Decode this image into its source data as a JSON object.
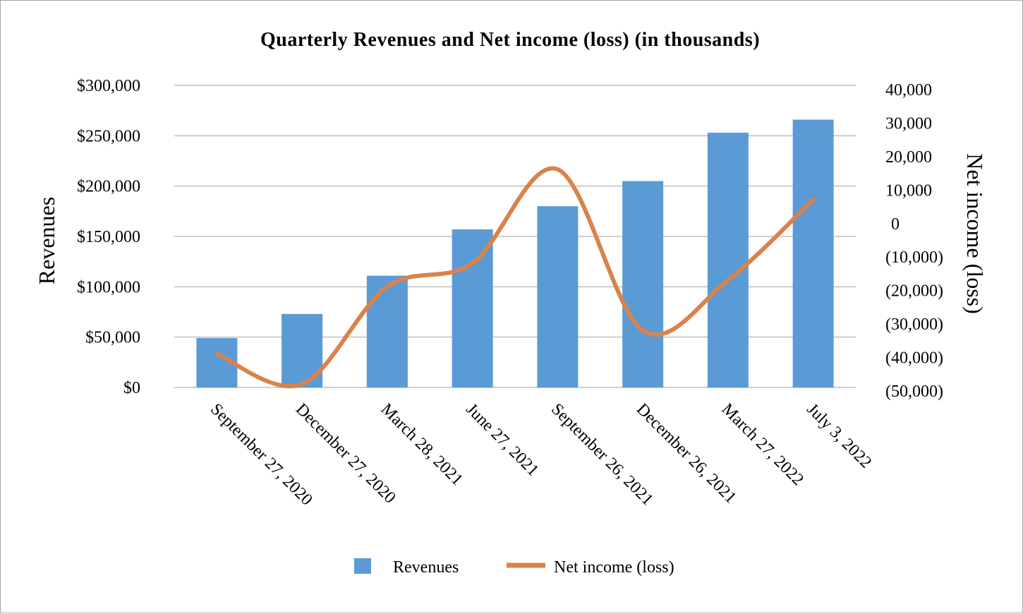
{
  "chart_data": {
    "type": "bar",
    "title": "Quarterly Revenues and Net income (loss) (in thousands)",
    "categories": [
      "September 27, 2020",
      "December 27, 2020",
      "March 28, 2021",
      "June 27, 2021",
      "September 26, 2021",
      "December 26, 2021",
      "March 27, 2022",
      "July 3, 2022"
    ],
    "series": [
      {
        "name": "Revenues",
        "type": "bar",
        "axis": "left",
        "color": "#5b9bd5",
        "values": [
          49000,
          73000,
          111000,
          157000,
          180000,
          205000,
          253000,
          266000
        ]
      },
      {
        "name": "Net income (loss)",
        "type": "line",
        "axis": "right",
        "smooth": true,
        "color": "#d9834a",
        "values": [
          -40000,
          -49000,
          -20000,
          -13000,
          15000,
          -33000,
          -18000,
          6000
        ]
      }
    ],
    "y_left": {
      "label": "Revenues",
      "range": [
        0,
        300000
      ],
      "ticks": [
        "$0",
        "$50,000",
        "$100,000",
        "$150,000",
        "$200,000",
        "$250,000",
        "$300,000"
      ]
    },
    "y_right": {
      "label": "Net income (loss)",
      "range": [
        -50000,
        40000
      ],
      "ticks": [
        "(50,000)",
        "(40,000)",
        "(30,000)",
        "(20,000)",
        "(10,000)",
        "0",
        "10,000",
        "20,000",
        "30,000",
        "40,000"
      ]
    },
    "grid": true,
    "legend": "bottom"
  }
}
